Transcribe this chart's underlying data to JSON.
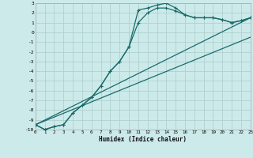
{
  "xlabel": "Humidex (Indice chaleur)",
  "bg_color": "#cdeaea",
  "grid_color": "#b0d0d0",
  "line_color": "#1a6b6b",
  "xlim": [
    0,
    23
  ],
  "ylim": [
    -10,
    3
  ],
  "xticks": [
    0,
    1,
    2,
    3,
    4,
    5,
    6,
    7,
    8,
    9,
    10,
    11,
    12,
    13,
    14,
    15,
    16,
    17,
    18,
    19,
    20,
    21,
    22,
    23
  ],
  "yticks": [
    3,
    2,
    1,
    0,
    -1,
    -2,
    -3,
    -4,
    -5,
    -6,
    -7,
    -8,
    -9,
    -10
  ],
  "series1_x": [
    0,
    1,
    2,
    3,
    4,
    5,
    6,
    7,
    8,
    9,
    10,
    11,
    12,
    13,
    14,
    15,
    16,
    17,
    18,
    19,
    20,
    21,
    22,
    23
  ],
  "series1_y": [
    -9.5,
    -10,
    -9.7,
    -9.5,
    -8.3,
    -7.5,
    -6.7,
    -5.5,
    -4.0,
    -3.0,
    -1.5,
    2.3,
    2.5,
    2.8,
    3.0,
    2.5,
    1.8,
    1.5,
    1.5,
    1.5,
    1.3,
    1.0,
    1.2,
    1.5
  ],
  "series2_x": [
    0,
    1,
    2,
    3,
    4,
    5,
    6,
    7,
    8,
    9,
    10,
    11,
    12,
    13,
    14,
    15,
    16,
    17,
    18,
    19,
    20,
    21,
    22,
    23
  ],
  "series2_y": [
    -9.5,
    -10,
    -9.7,
    -9.5,
    -8.3,
    -7.5,
    -6.7,
    -5.5,
    -4.0,
    -3.0,
    -1.5,
    1.0,
    2.0,
    2.5,
    2.5,
    2.2,
    1.8,
    1.5,
    1.5,
    1.5,
    1.3,
    1.0,
    1.2,
    1.5
  ],
  "line1_x": [
    0,
    23
  ],
  "line1_y": [
    -9.5,
    1.5
  ],
  "line2_x": [
    0,
    23
  ],
  "line2_y": [
    -9.5,
    -0.5
  ]
}
